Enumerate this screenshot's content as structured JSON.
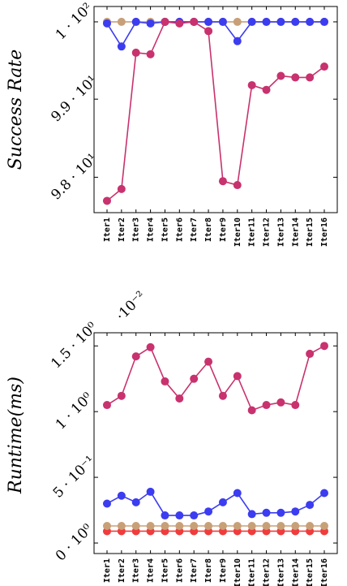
{
  "chart_data": [
    {
      "type": "line",
      "ylabel": "Success Rate",
      "y_scale": "log",
      "ylim": [
        97.55,
        100.2
      ],
      "y_ticks": [
        98,
        99,
        100
      ],
      "y_tick_labels": [
        "9.8 · 10¹",
        "9.9 · 10¹",
        "1 · 10²"
      ],
      "categories": [
        "Iter1",
        "Iter2",
        "Iter3",
        "Iter4",
        "Iter5",
        "Iter6",
        "Iter7",
        "Iter8",
        "Iter9",
        "Iter10",
        "Iter11",
        "Iter12",
        "Iter13",
        "Iter14",
        "Iter15",
        "Iter16"
      ],
      "series": [
        {
          "color": "#c8326e",
          "values": [
            97.7,
            97.85,
            99.6,
            99.58,
            100.0,
            99.98,
            100.0,
            99.88,
            97.95,
            97.9,
            99.18,
            99.12,
            99.3,
            99.28,
            99.28,
            99.42
          ]
        },
        {
          "color": "#3c3cf0",
          "values": [
            99.98,
            99.68,
            100.0,
            99.98,
            100.0,
            100.0,
            100.0,
            100.0,
            100.0,
            99.75,
            100.0,
            100.0,
            100.0,
            100.0,
            100.0,
            100.0
          ]
        },
        {
          "color": "#c8a078",
          "values": [
            100.0,
            100.0,
            100.0,
            100.0,
            100.0,
            100.0,
            100.0,
            100.0,
            100.0,
            100.0,
            100.0,
            100.0,
            100.0,
            100.0,
            100.0,
            100.0
          ]
        }
      ]
    },
    {
      "type": "line",
      "ylabel": "Runtime(ms)",
      "y_multiplier": "·10⁻²",
      "ylim": [
        -0.08,
        1.6
      ],
      "y_ticks": [
        0,
        0.5,
        1.0,
        1.5
      ],
      "y_tick_labels": [
        "0 · 10⁰",
        "5 · 10⁻¹",
        "1 · 10⁰",
        "1.5 · 10⁰"
      ],
      "categories": [
        "Iter1",
        "Iter2",
        "Iter3",
        "Iter4",
        "Iter5",
        "Iter6",
        "Iter7",
        "Iter8",
        "Iter9",
        "Iter10",
        "Iter11",
        "Iter12",
        "Iter13",
        "Iter14",
        "Iter15",
        "Iter16"
      ],
      "series": [
        {
          "color": "#c8326e",
          "values": [
            1.05,
            1.12,
            1.42,
            1.49,
            1.23,
            1.1,
            1.25,
            1.38,
            1.12,
            1.27,
            1.01,
            1.05,
            1.07,
            1.05,
            1.44,
            1.5
          ]
        },
        {
          "color": "#3c3cf0",
          "values": [
            0.3,
            0.36,
            0.31,
            0.39,
            0.21,
            0.21,
            0.21,
            0.24,
            0.31,
            0.38,
            0.22,
            0.23,
            0.23,
            0.24,
            0.29,
            0.38
          ]
        },
        {
          "color": "#c8a078",
          "values": [
            0.13,
            0.13,
            0.13,
            0.13,
            0.13,
            0.13,
            0.13,
            0.13,
            0.13,
            0.13,
            0.13,
            0.13,
            0.13,
            0.13,
            0.13,
            0.13
          ]
        },
        {
          "color": "#f03c3c",
          "values": [
            0.09,
            0.09,
            0.09,
            0.09,
            0.09,
            0.09,
            0.09,
            0.09,
            0.09,
            0.09,
            0.09,
            0.09,
            0.09,
            0.09,
            0.09,
            0.09
          ]
        }
      ]
    }
  ]
}
